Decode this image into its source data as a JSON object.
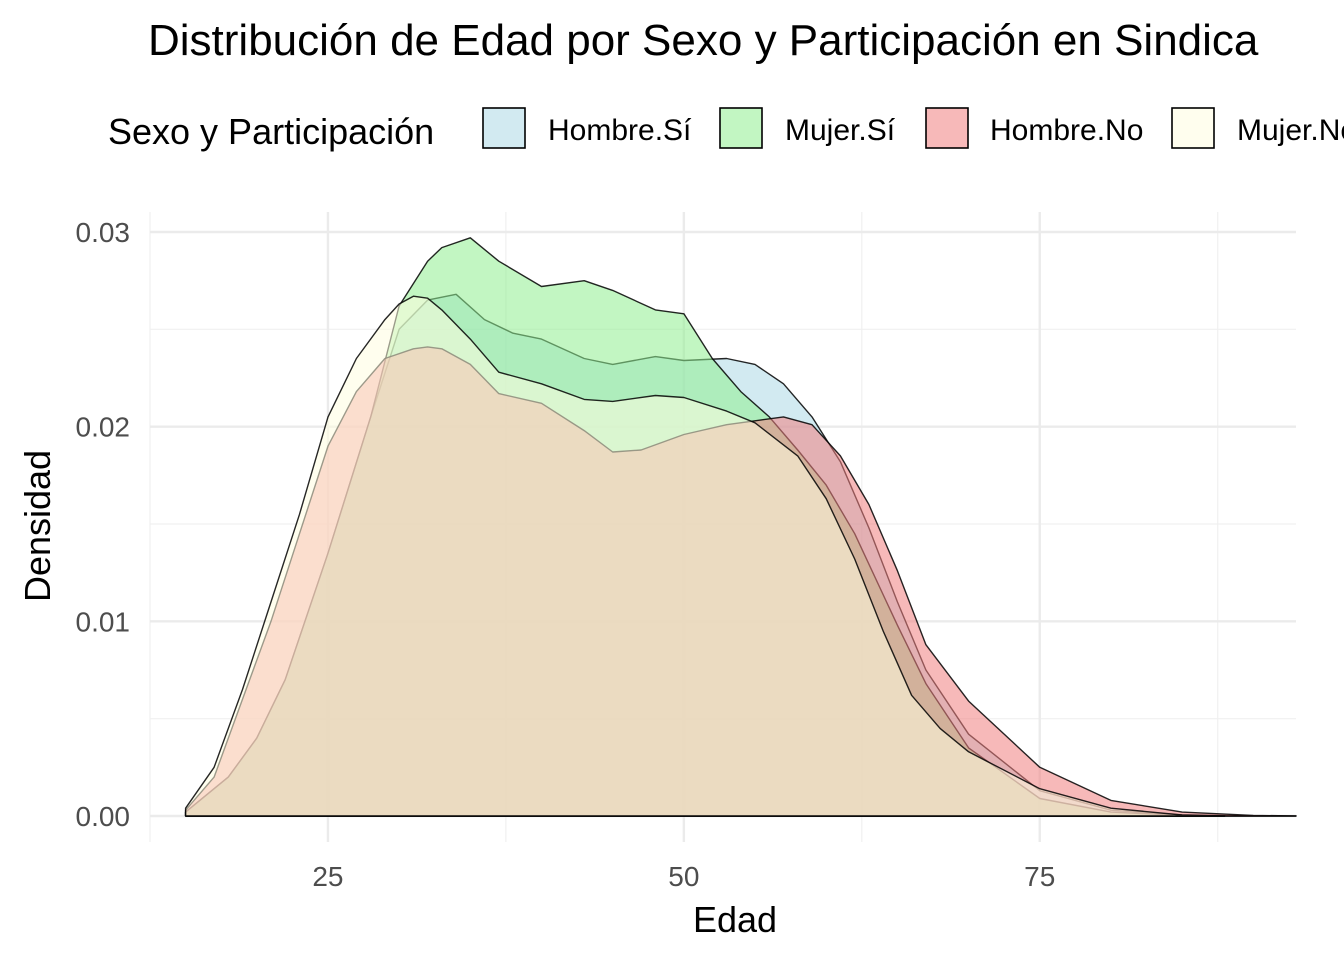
{
  "chart_data": {
    "type": "area",
    "subtype": "density",
    "title": "Distribución de Edad por Sexo y Participación en Sindica",
    "xlabel": "Edad",
    "ylabel": "Densidad",
    "xlim": [
      12.5,
      93
    ],
    "ylim": [
      0,
      0.03
    ],
    "x_ticks": [
      25,
      50,
      75
    ],
    "x_tick_labels": [
      "25",
      "50",
      "75"
    ],
    "y_ticks": [
      0,
      0.01,
      0.02,
      0.03
    ],
    "y_tick_labels": [
      "0.00",
      "0.01",
      "0.02",
      "0.03"
    ],
    "grid": true,
    "legend": {
      "title": "Sexo y Participación",
      "position": "top"
    },
    "series": [
      {
        "name": "Hombre.Sí",
        "color": "#add8e6",
        "x": [
          15,
          18,
          20,
          22,
          25,
          28,
          30,
          32,
          34,
          36,
          38,
          40,
          43,
          45,
          48,
          50,
          53,
          55,
          57,
          59,
          61,
          63,
          65,
          67,
          70,
          75,
          80,
          85,
          90,
          93
        ],
        "y": [
          0.0002,
          0.002,
          0.004,
          0.007,
          0.0135,
          0.0205,
          0.025,
          0.0265,
          0.0268,
          0.0255,
          0.0248,
          0.0245,
          0.0235,
          0.0232,
          0.0236,
          0.0234,
          0.0235,
          0.0232,
          0.0222,
          0.0205,
          0.0182,
          0.0148,
          0.011,
          0.0075,
          0.0042,
          0.0013,
          0.0003,
          5e-05,
          0.0,
          0.0
        ]
      },
      {
        "name": "Mujer.Sí",
        "color": "#90ee90",
        "x": [
          15,
          18,
          20,
          22,
          25,
          28,
          30,
          32,
          33,
          35,
          37,
          40,
          43,
          45,
          48,
          50,
          52,
          54,
          56,
          58,
          60,
          62,
          65,
          67,
          70,
          75,
          80,
          85,
          88
        ],
        "y": [
          0.0002,
          0.002,
          0.004,
          0.007,
          0.0135,
          0.0205,
          0.0262,
          0.0285,
          0.0292,
          0.0297,
          0.0285,
          0.0272,
          0.0275,
          0.027,
          0.026,
          0.0258,
          0.0235,
          0.0218,
          0.0205,
          0.0188,
          0.017,
          0.0145,
          0.0098,
          0.0068,
          0.0035,
          0.0009,
          0.0002,
          3e-05,
          0.0
        ]
      },
      {
        "name": "Hombre.No",
        "color": "#f08080",
        "x": [
          15,
          17,
          19,
          21,
          23,
          25,
          27,
          29,
          31,
          32,
          33,
          35,
          37,
          40,
          43,
          45,
          47,
          50,
          53,
          55,
          57,
          59,
          61,
          63,
          65,
          67,
          70,
          75,
          80,
          85,
          90,
          93
        ],
        "y": [
          0.0003,
          0.002,
          0.006,
          0.01,
          0.0145,
          0.019,
          0.0218,
          0.0235,
          0.024,
          0.0241,
          0.024,
          0.0232,
          0.0217,
          0.0212,
          0.0198,
          0.0187,
          0.0188,
          0.0196,
          0.0201,
          0.0203,
          0.0205,
          0.0201,
          0.0185,
          0.016,
          0.0126,
          0.0088,
          0.0059,
          0.0025,
          0.0008,
          0.0002,
          3e-05,
          0.0
        ]
      },
      {
        "name": "Mujer.No",
        "color": "#fffde0",
        "x": [
          15,
          17,
          19,
          21,
          23,
          25,
          27,
          29,
          30,
          31,
          32,
          33,
          35,
          37,
          40,
          43,
          45,
          48,
          50,
          53,
          55,
          58,
          60,
          62,
          64,
          66,
          68,
          70,
          75,
          80,
          85,
          88
        ],
        "y": [
          0.0004,
          0.0025,
          0.0065,
          0.011,
          0.0155,
          0.0205,
          0.0235,
          0.0255,
          0.0263,
          0.0267,
          0.0266,
          0.026,
          0.0245,
          0.0228,
          0.0222,
          0.0214,
          0.0213,
          0.0216,
          0.0215,
          0.0208,
          0.0202,
          0.0185,
          0.0163,
          0.0132,
          0.0095,
          0.0062,
          0.0045,
          0.0033,
          0.0014,
          0.0004,
          5e-05,
          0.0
        ]
      }
    ]
  }
}
